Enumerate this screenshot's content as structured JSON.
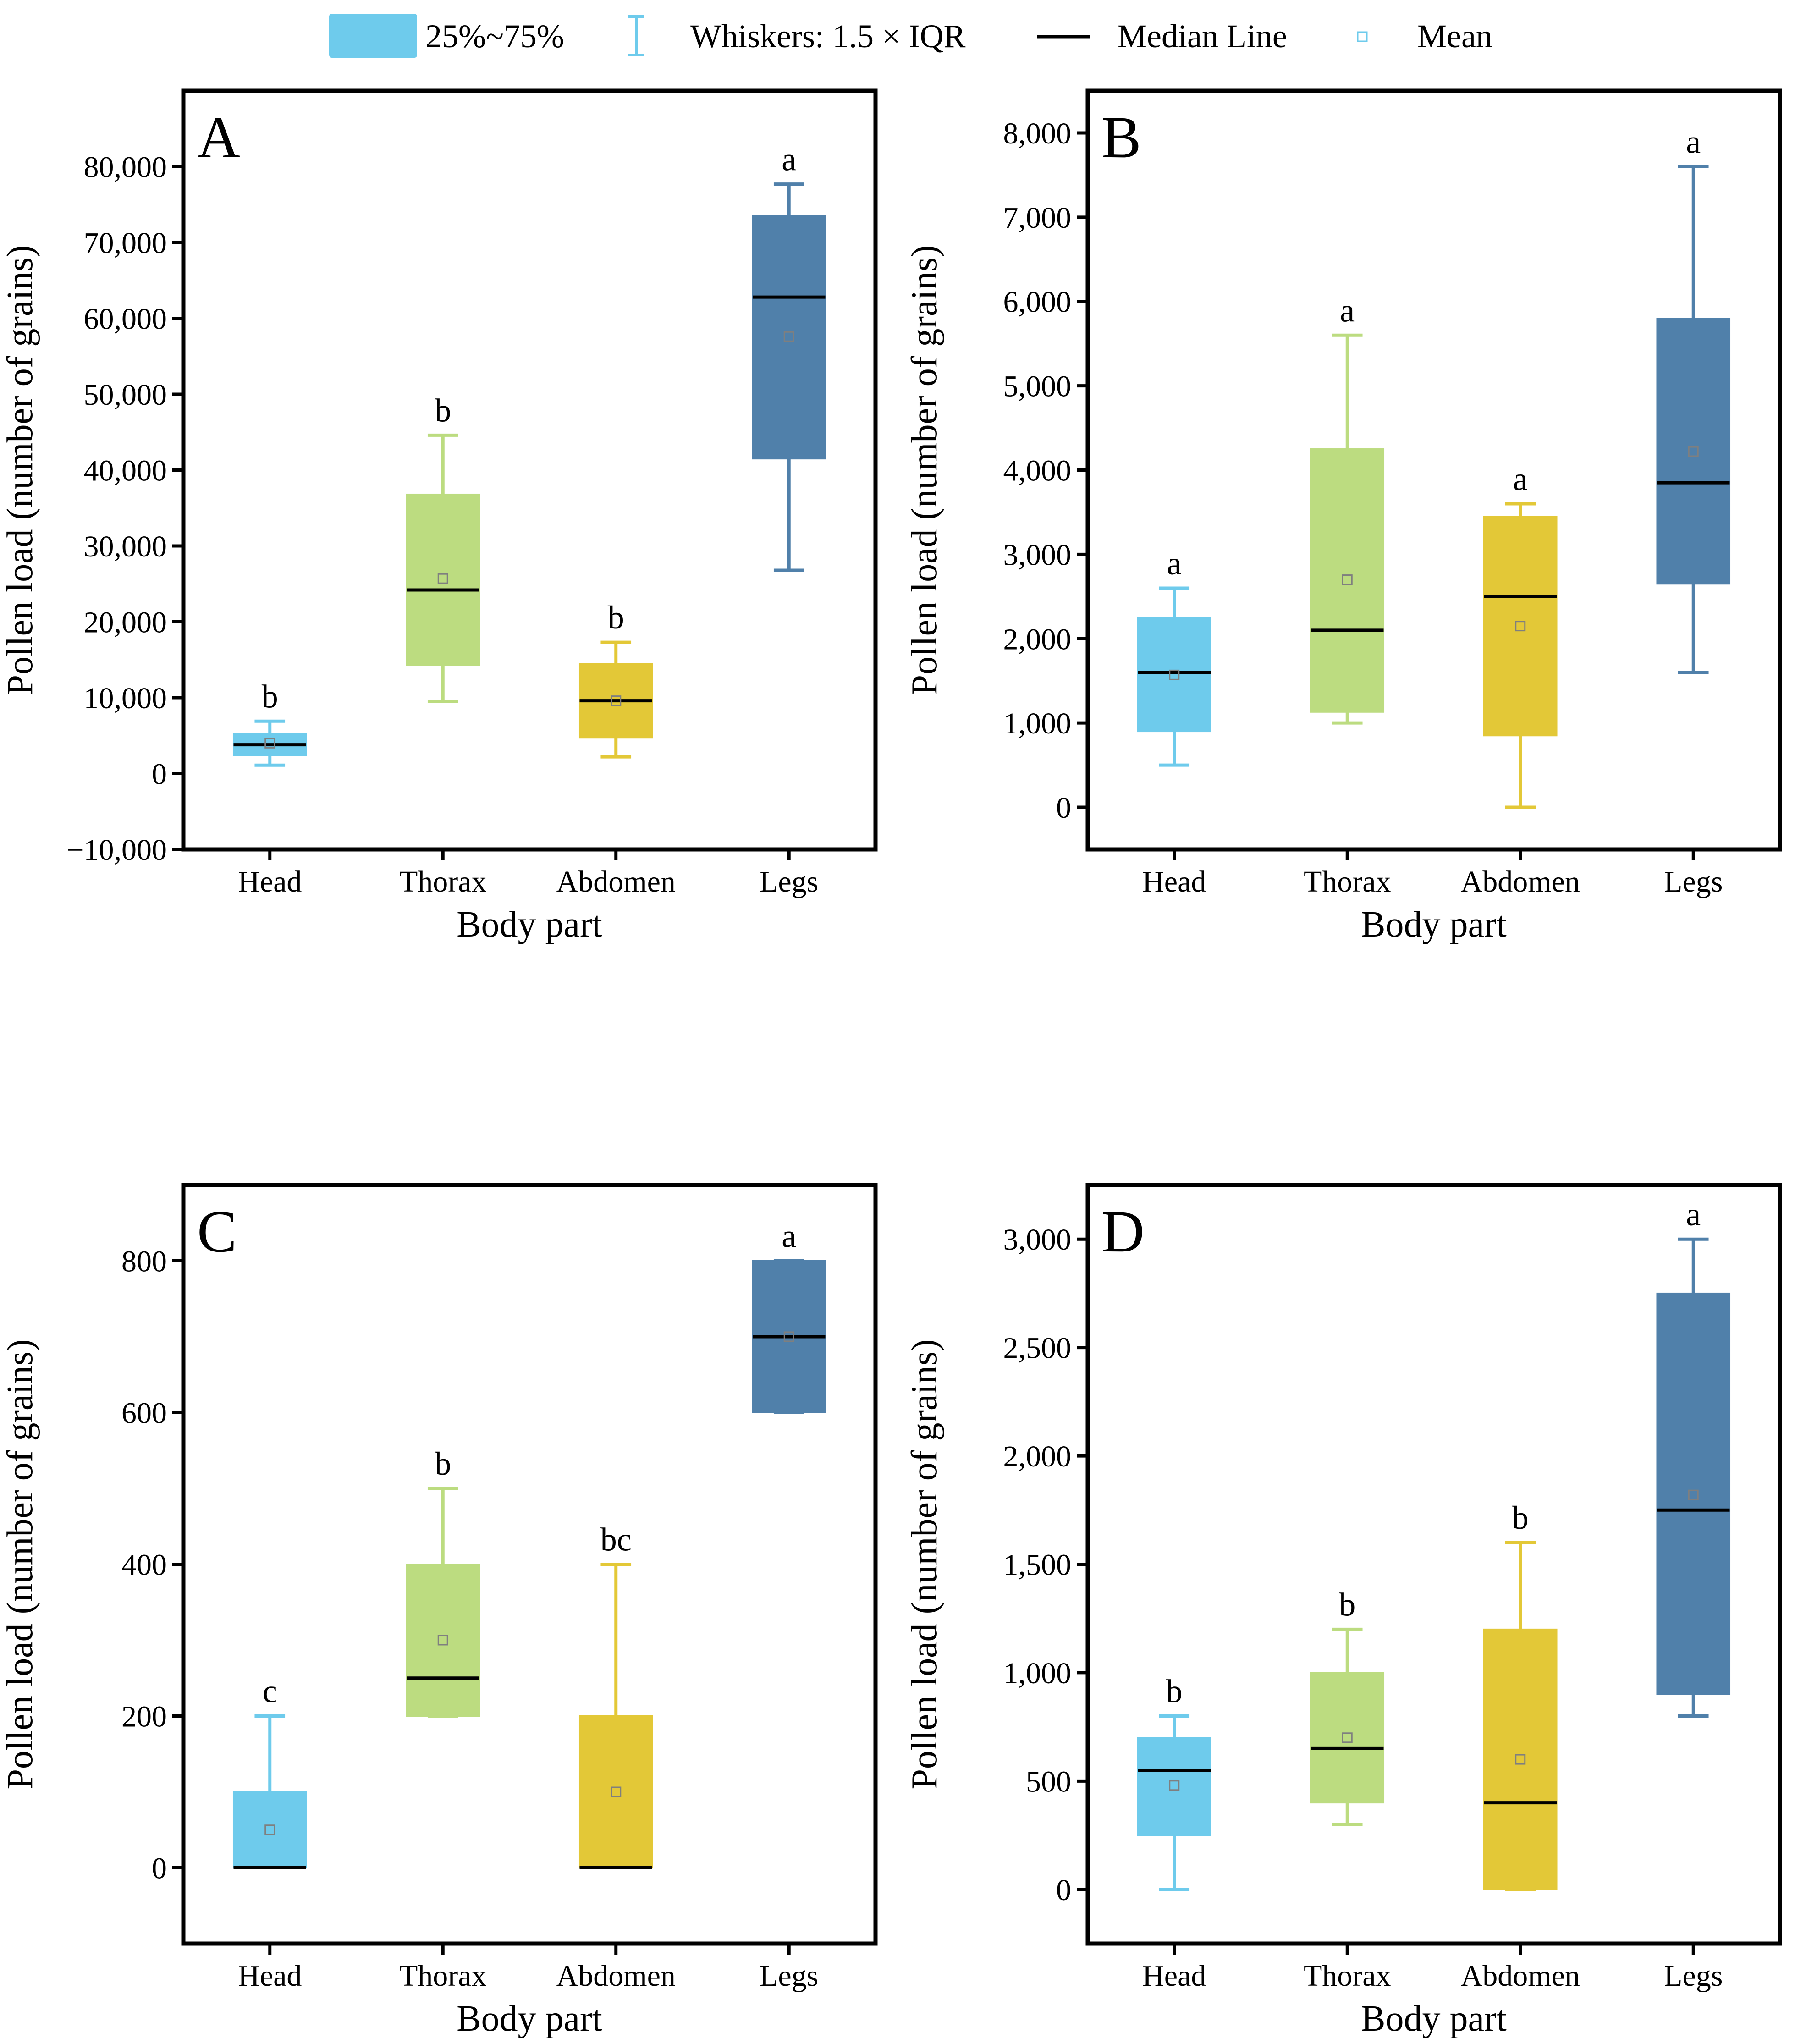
{
  "legend": {
    "box_label": "25%~75%",
    "whisker_label": "Whiskers: 1.5 × IQR",
    "median_label": "Median Line",
    "mean_label": "Mean"
  },
  "colors": {
    "head": "#6ecbec",
    "thorax": "#bcdc80",
    "abdomen": "#e3c837",
    "legs": "#5080aa",
    "mean_marker_box": "#7f7f7f"
  },
  "chart_data": [
    {
      "type": "box",
      "panel": "A",
      "xlabel": "Body part",
      "ylabel": "Pollen load (number of grains)",
      "categories": [
        "Head",
        "Thorax",
        "Abdomen",
        "Legs"
      ],
      "ylim": [
        -10000,
        90000
      ],
      "yticks": [
        -10000,
        0,
        10000,
        20000,
        30000,
        40000,
        50000,
        60000,
        70000,
        80000
      ],
      "ytick_labels": [
        "−10,000",
        "0",
        "10,000",
        "20,000",
        "30,000",
        "40,000",
        "50,000",
        "60,000",
        "70,000",
        "80,000"
      ],
      "boxes": [
        {
          "whisker_low": 1100,
          "q1": 2400,
          "median": 3800,
          "q3": 5300,
          "whisker_high": 6900,
          "mean": 4000,
          "letter": "b"
        },
        {
          "whisker_low": 9500,
          "q1": 14300,
          "median": 24200,
          "q3": 36800,
          "whisker_high": 44600,
          "mean": 25700,
          "letter": "b"
        },
        {
          "whisker_low": 2200,
          "q1": 4700,
          "median": 9600,
          "q3": 14500,
          "whisker_high": 17300,
          "mean": 9600,
          "letter": "b"
        },
        {
          "whisker_low": 26800,
          "q1": 41500,
          "median": 62800,
          "q3": 73500,
          "whisker_high": 77700,
          "mean": 57600,
          "letter": "a"
        }
      ]
    },
    {
      "type": "box",
      "panel": "B",
      "xlabel": "Body part",
      "ylabel": "Pollen load (number of grains)",
      "categories": [
        "Head",
        "Thorax",
        "Abdomen",
        "Legs"
      ],
      "ylim": [
        -500,
        8500
      ],
      "yticks": [
        0,
        1000,
        2000,
        3000,
        4000,
        5000,
        6000,
        7000,
        8000
      ],
      "ytick_labels": [
        "0",
        "1,000",
        "2,000",
        "3,000",
        "4,000",
        "5,000",
        "6,000",
        "7,000",
        "8,000"
      ],
      "boxes": [
        {
          "whisker_low": 500,
          "q1": 900,
          "median": 1600,
          "q3": 2250,
          "whisker_high": 2600,
          "mean": 1570,
          "letter": "a"
        },
        {
          "whisker_low": 1000,
          "q1": 1130,
          "median": 2100,
          "q3": 4250,
          "whisker_high": 5600,
          "mean": 2700,
          "letter": "a"
        },
        {
          "whisker_low": 0,
          "q1": 850,
          "median": 2500,
          "q3": 3450,
          "whisker_high": 3600,
          "mean": 2150,
          "letter": "a"
        },
        {
          "whisker_low": 1600,
          "q1": 2650,
          "median": 3850,
          "q3": 5800,
          "whisker_high": 7600,
          "mean": 4220,
          "letter": "a"
        }
      ]
    },
    {
      "type": "box",
      "panel": "C",
      "xlabel": "Body part",
      "ylabel": "Pollen load (number of grains)",
      "categories": [
        "Head",
        "Thorax",
        "Abdomen",
        "Legs"
      ],
      "ylim": [
        -100,
        900
      ],
      "yticks": [
        0,
        200,
        400,
        600,
        800
      ],
      "ytick_labels": [
        "0",
        "200",
        "400",
        "600",
        "800"
      ],
      "boxes": [
        {
          "whisker_low": 0,
          "q1": 0,
          "median": 0,
          "q3": 100,
          "whisker_high": 200,
          "mean": 50,
          "letter": "c"
        },
        {
          "whisker_low": 200,
          "q1": 200,
          "median": 250,
          "q3": 400,
          "whisker_high": 500,
          "mean": 300,
          "letter": "b"
        },
        {
          "whisker_low": 0,
          "q1": 0,
          "median": 0,
          "q3": 200,
          "whisker_high": 400,
          "mean": 100,
          "letter": "bc"
        },
        {
          "whisker_low": 600,
          "q1": 600,
          "median": 700,
          "q3": 800,
          "whisker_high": 800,
          "mean": 700,
          "letter": "a"
        }
      ]
    },
    {
      "type": "box",
      "panel": "D",
      "xlabel": "Body part",
      "ylabel": "Pollen load (number of grains)",
      "categories": [
        "Head",
        "Thorax",
        "Abdomen",
        "Legs"
      ],
      "ylim": [
        -250,
        3250
      ],
      "yticks": [
        0,
        500,
        1000,
        1500,
        2000,
        2500,
        3000
      ],
      "ytick_labels": [
        "0",
        "500",
        "1,000",
        "1,500",
        "2,000",
        "2,500",
        "3,000"
      ],
      "boxes": [
        {
          "whisker_low": 0,
          "q1": 250,
          "median": 550,
          "q3": 700,
          "whisker_high": 800,
          "mean": 480,
          "letter": "b"
        },
        {
          "whisker_low": 300,
          "q1": 400,
          "median": 650,
          "q3": 1000,
          "whisker_high": 1200,
          "mean": 700,
          "letter": "b"
        },
        {
          "whisker_low": 0,
          "q1": 0,
          "median": 400,
          "q3": 1200,
          "whisker_high": 1600,
          "mean": 600,
          "letter": "b"
        },
        {
          "whisker_low": 800,
          "q1": 900,
          "median": 1750,
          "q3": 2750,
          "whisker_high": 3000,
          "mean": 1820,
          "letter": "a"
        }
      ]
    }
  ]
}
